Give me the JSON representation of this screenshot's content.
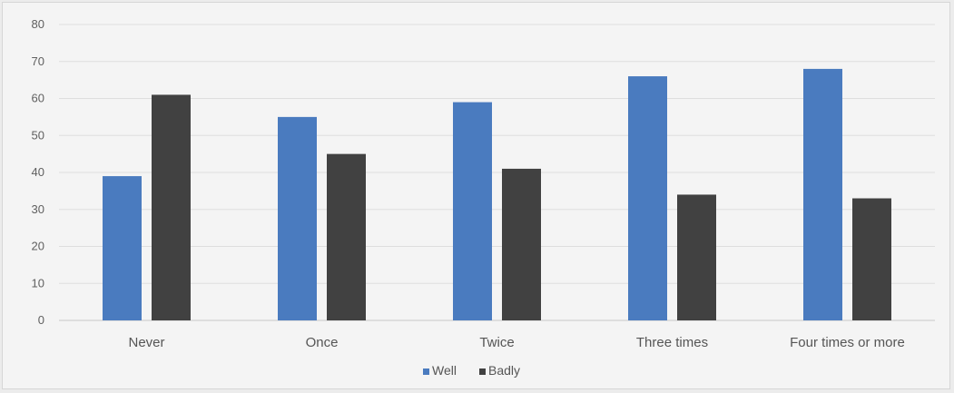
{
  "chart_data": {
    "type": "bar",
    "title": "",
    "xlabel": "",
    "ylabel": "",
    "categories": [
      "Never",
      "Once",
      "Twice",
      "Three times",
      "Four times or more"
    ],
    "series": [
      {
        "name": "Well",
        "color": "#4a7bbf",
        "values": [
          39,
          55,
          59,
          66,
          68
        ]
      },
      {
        "name": "Badly",
        "color": "#414141",
        "values": [
          61,
          45,
          41,
          34,
          33
        ]
      }
    ],
    "ylim": [
      0,
      80
    ],
    "yticks": [
      0,
      10,
      20,
      30,
      40,
      50,
      60,
      70,
      80
    ],
    "grid": true,
    "legend_position": "bottom"
  }
}
